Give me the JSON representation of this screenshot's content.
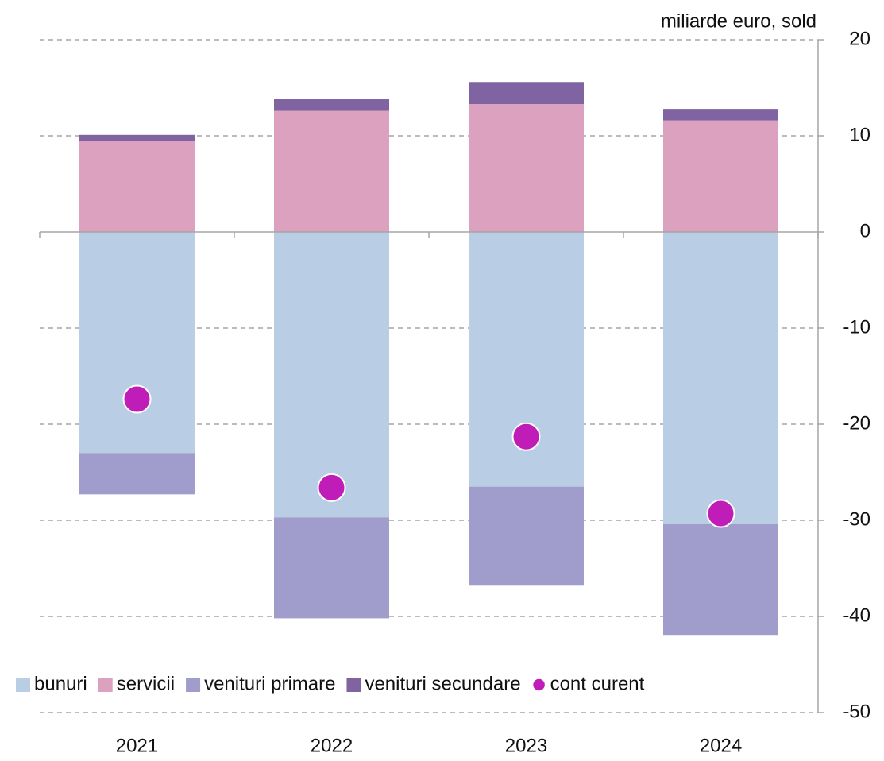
{
  "chart_data": {
    "type": "bar",
    "stacked": true,
    "unit_label": "miliarde euro, sold",
    "categories": [
      "2021",
      "2022",
      "2023",
      "2024"
    ],
    "series": [
      {
        "name": "bunuri",
        "color": "#b9cde4",
        "values": [
          -23.0,
          -29.7,
          -26.5,
          -30.4
        ]
      },
      {
        "name": "servicii",
        "color": "#dba1bf",
        "values": [
          9.5,
          12.6,
          13.3,
          11.6
        ]
      },
      {
        "name": "venituri primare",
        "color": "#a09ccb",
        "values": [
          -4.3,
          -10.5,
          -10.3,
          -11.6
        ]
      },
      {
        "name": "venituri secundare",
        "color": "#8064a2",
        "values": [
          0.6,
          1.2,
          2.3,
          1.2
        ]
      },
      {
        "name": "cont curent",
        "color": "#c01cb8",
        "type": "scatter",
        "values": [
          -17.4,
          -26.6,
          -21.3,
          -29.3
        ]
      }
    ],
    "ylim": [
      -50,
      20
    ],
    "yticks": [
      -50,
      -40,
      -30,
      -20,
      -10,
      0,
      10,
      20
    ],
    "grid": true,
    "y_axis_side": "right",
    "legend": "bottom"
  }
}
